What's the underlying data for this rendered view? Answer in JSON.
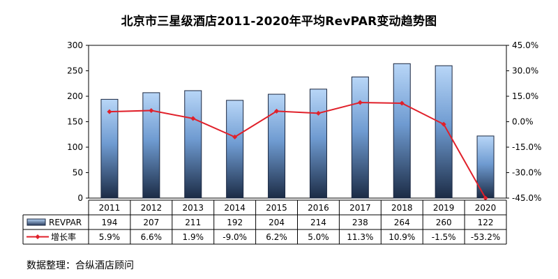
{
  "chart_data": {
    "type": "bar",
    "title": "北京市三星级酒店2011-2020年平均RevPAR变动趋势图",
    "categories": [
      "2011",
      "2012",
      "2013",
      "2014",
      "2015",
      "2016",
      "2017",
      "2018",
      "2019",
      "2020"
    ],
    "series": [
      {
        "name": "REVPAR",
        "type": "bar",
        "axis": "left",
        "values": [
          194,
          207,
          211,
          192,
          204,
          214,
          238,
          264,
          260,
          122
        ],
        "labels": [
          "194",
          "207",
          "211",
          "192",
          "204",
          "214",
          "238",
          "264",
          "260",
          "122"
        ],
        "color": "#8fb8e8"
      },
      {
        "name": "增长率",
        "type": "line",
        "axis": "right",
        "values": [
          5.9,
          6.6,
          1.9,
          -9.0,
          6.2,
          5.0,
          11.3,
          10.9,
          -1.5,
          -53.2
        ],
        "labels": [
          "5.9%",
          "6.6%",
          "1.9%",
          "-9.0%",
          "6.2%",
          "5.0%",
          "11.3%",
          "10.9%",
          "-1.5%",
          "-53.2%"
        ],
        "color": "#e0202a"
      }
    ],
    "y_left": {
      "ylim": [
        0,
        300
      ],
      "ticks": [
        "0",
        "50",
        "100",
        "150",
        "200",
        "250",
        "300"
      ]
    },
    "y_right": {
      "ylim": [
        -45,
        45
      ],
      "ticks": [
        "-45.0%",
        "-30.0%",
        "-15.0%",
        "0.0%",
        "15.0%",
        "30.0%",
        "45.0%"
      ]
    },
    "grid": false,
    "legend": "data-table-below",
    "source_note": "数据整理：合纵酒店顾问"
  }
}
